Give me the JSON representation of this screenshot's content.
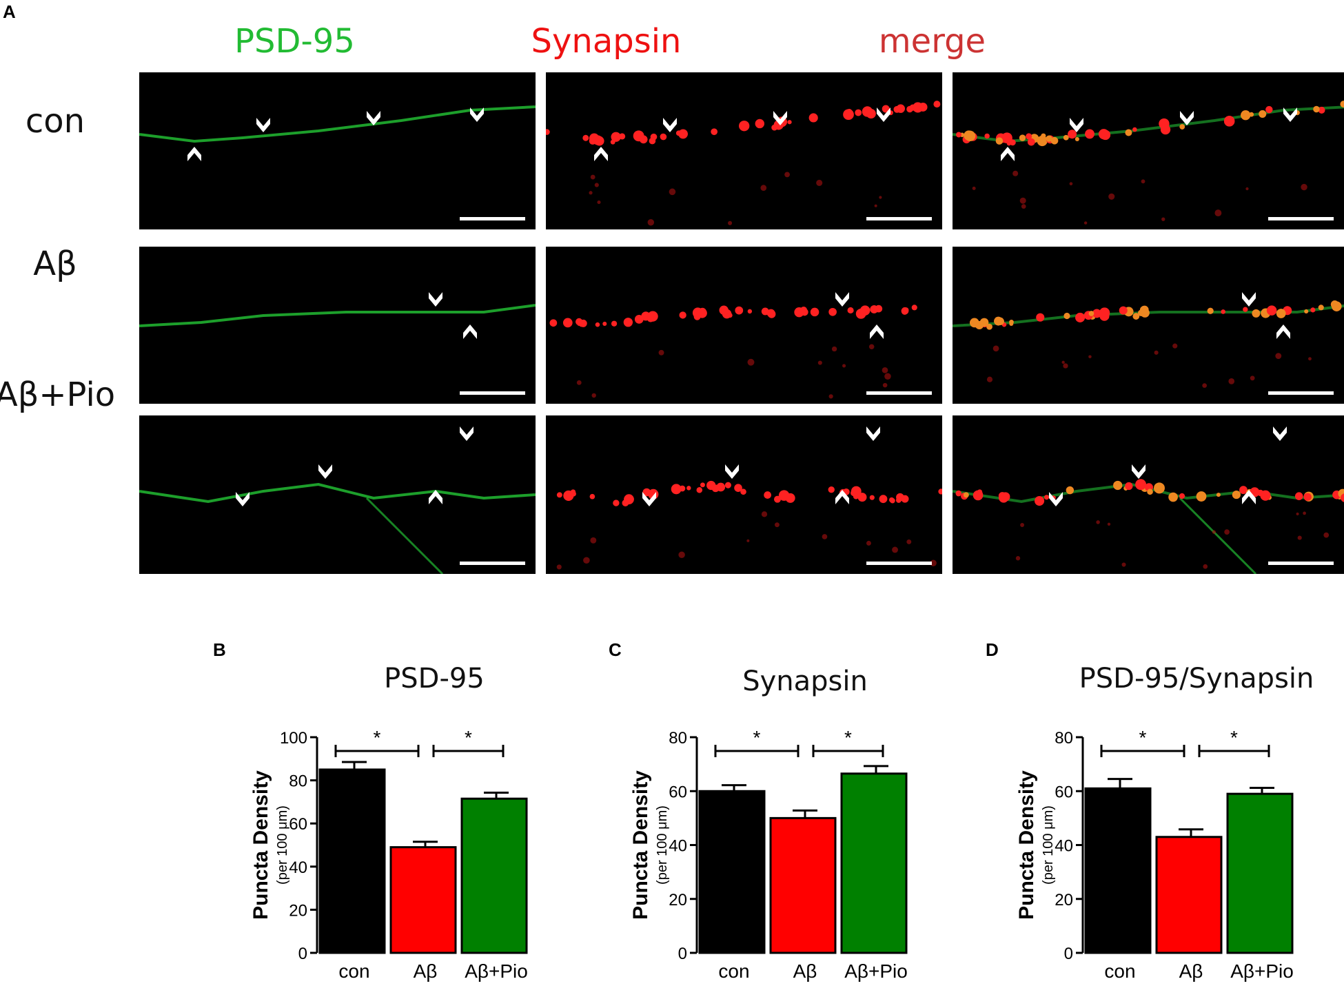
{
  "panel_a": {
    "letter": "A",
    "columns": [
      {
        "label": "PSD-95",
        "color": "#22bb33"
      },
      {
        "label": "Synapsin",
        "color": "#ee1111"
      },
      {
        "label": "merge",
        "color": "#cc3333"
      }
    ],
    "rows": [
      {
        "label": "con"
      },
      {
        "label": "Aβ"
      },
      {
        "label": "Aβ+Pio"
      }
    ]
  },
  "colors": {
    "con": "#000000",
    "abeta": "#ff0000",
    "abeta_pio": "#008000",
    "psd_channel": "#22bb33",
    "syn_channel": "#ff2222"
  },
  "chart_data": [
    {
      "letter": "B",
      "type": "bar",
      "title": "PSD-95",
      "ylabel": "Puncta Density",
      "ylabel_sub": "(per 100 μm)",
      "categories": [
        "con",
        "Aβ",
        "Aβ+Pio"
      ],
      "values": [
        85,
        49,
        71.5
      ],
      "errors": [
        3.5,
        2.5,
        2.8
      ],
      "ylim": [
        0,
        100
      ],
      "yticks": [
        0,
        20,
        40,
        60,
        80,
        100
      ],
      "significance": [
        {
          "from": 0,
          "to": 1,
          "label": "*"
        },
        {
          "from": 1,
          "to": 2,
          "label": "*"
        }
      ]
    },
    {
      "letter": "C",
      "type": "bar",
      "title": "Synapsin",
      "ylabel": "Puncta Density",
      "ylabel_sub": "(per 100 μm)",
      "categories": [
        "con",
        "Aβ",
        "Aβ+Pio"
      ],
      "values": [
        60,
        50,
        66.5
      ],
      "errors": [
        2.2,
        2.8,
        2.8
      ],
      "ylim": [
        0,
        80
      ],
      "yticks": [
        0,
        20,
        40,
        60,
        80
      ],
      "significance": [
        {
          "from": 0,
          "to": 1,
          "label": "*"
        },
        {
          "from": 1,
          "to": 2,
          "label": "*"
        }
      ]
    },
    {
      "letter": "D",
      "type": "bar",
      "title": "PSD-95/Synapsin",
      "ylabel": "Puncta Density",
      "ylabel_sub": "(per 100 μm)",
      "categories": [
        "con",
        "Aβ",
        "Aβ+Pio"
      ],
      "values": [
        61,
        43,
        59
      ],
      "errors": [
        3.5,
        2.8,
        2.2
      ],
      "ylim": [
        0,
        80
      ],
      "yticks": [
        0,
        20,
        40,
        60,
        80
      ],
      "significance": [
        {
          "from": 0,
          "to": 1,
          "label": "*"
        },
        {
          "from": 1,
          "to": 2,
          "label": "*"
        }
      ]
    }
  ]
}
